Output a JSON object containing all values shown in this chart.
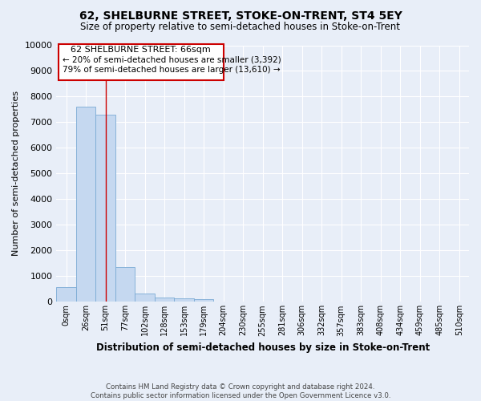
{
  "title": "62, SHELBURNE STREET, STOKE-ON-TRENT, ST4 5EY",
  "subtitle": "Size of property relative to semi-detached houses in Stoke-on-Trent",
  "xlabel": "Distribution of semi-detached houses by size in Stoke-on-Trent",
  "ylabel": "Number of semi-detached properties",
  "footnote1": "Contains HM Land Registry data © Crown copyright and database right 2024.",
  "footnote2": "Contains public sector information licensed under the Open Government Licence v3.0.",
  "categories": [
    "0sqm",
    "26sqm",
    "51sqm",
    "77sqm",
    "102sqm",
    "128sqm",
    "153sqm",
    "179sqm",
    "204sqm",
    "230sqm",
    "255sqm",
    "281sqm",
    "306sqm",
    "332sqm",
    "357sqm",
    "383sqm",
    "408sqm",
    "434sqm",
    "459sqm",
    "485sqm",
    "510sqm"
  ],
  "values": [
    560,
    7600,
    7300,
    1350,
    340,
    170,
    130,
    100,
    0,
    0,
    0,
    0,
    0,
    0,
    0,
    0,
    0,
    0,
    0,
    0,
    0
  ],
  "bar_color": "#c5d8f0",
  "bar_edge_color": "#7aaad4",
  "ylim": [
    0,
    10000
  ],
  "yticks": [
    0,
    1000,
    2000,
    3000,
    4000,
    5000,
    6000,
    7000,
    8000,
    9000,
    10000
  ],
  "property_label": "62 SHELBURNE STREET: 66sqm",
  "pct_smaller": 20,
  "n_smaller": 3392,
  "pct_larger": 79,
  "n_larger": 13610,
  "annotation_box_color": "#ffffff",
  "annotation_box_edge": "#cc0000",
  "vline_color": "#cc0000",
  "vline_x": 2.0,
  "background_color": "#e8eef8",
  "grid_color": "#ffffff"
}
